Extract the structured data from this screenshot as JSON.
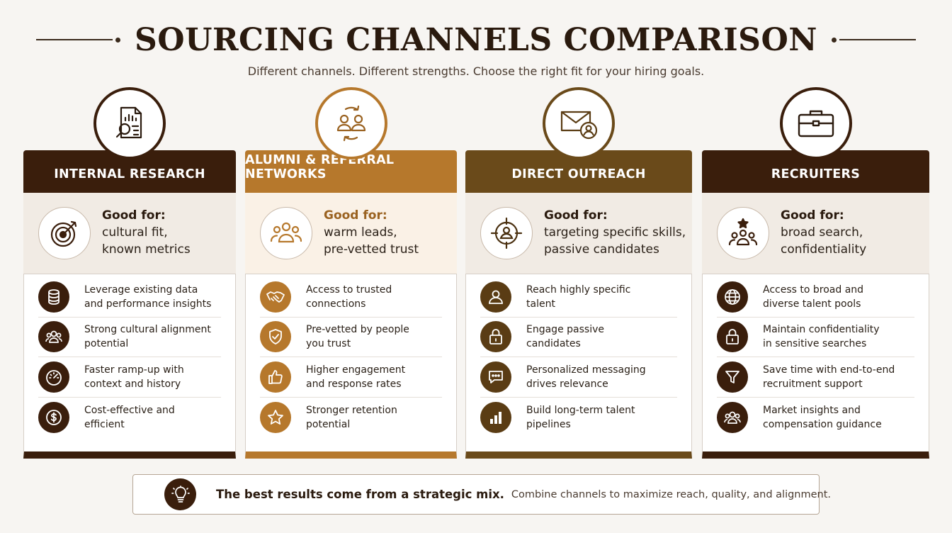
{
  "header": {
    "title": "SOURCING CHANNELS COMPARISON",
    "subtitle": "Different channels. Different strengths. Choose the right fit for your hiring goals."
  },
  "colors": {
    "dark_brown": "#3a1e0c",
    "gold": "#b6782c",
    "olive_brown": "#6a4a1a"
  },
  "columns": [
    {
      "title": "INTERNAL RESEARCH",
      "top_icon": "report-search-icon",
      "good_for_label": "Good for:",
      "good_for_line1": "cultural fit,",
      "good_for_line2": "known metrics",
      "good_for_icon": "target-icon",
      "items": [
        {
          "icon": "database-icon",
          "line1": "Leverage existing data",
          "line2": "and performance insights"
        },
        {
          "icon": "people-icon",
          "line1": "Strong cultural alignment",
          "line2": "potential"
        },
        {
          "icon": "speedometer-icon",
          "line1": "Faster ramp-up with",
          "line2": "context and history"
        },
        {
          "icon": "dollar-icon",
          "line1": "Cost-effective and",
          "line2": "efficient"
        }
      ]
    },
    {
      "title": "ALUMNI & REFERRAL NETWORKS",
      "top_icon": "referral-cycle-icon",
      "good_for_label": "Good for:",
      "good_for_line1": "warm leads,",
      "good_for_line2": "pre-vetted trust",
      "good_for_icon": "group-icon",
      "items": [
        {
          "icon": "handshake-icon",
          "line1": "Access to trusted",
          "line2": "connections"
        },
        {
          "icon": "shield-check-icon",
          "line1": "Pre-vetted by people",
          "line2": "you trust"
        },
        {
          "icon": "thumbs-up-icon",
          "line1": "Higher engagement",
          "line2": "and response rates"
        },
        {
          "icon": "star-icon",
          "line1": "Stronger retention",
          "line2": "potential"
        }
      ]
    },
    {
      "title": "DIRECT OUTREACH",
      "top_icon": "envelope-person-icon",
      "good_for_label": "Good for:",
      "good_for_line1": "targeting specific skills,",
      "good_for_line2": "passive candidates",
      "good_for_icon": "crosshair-person-icon",
      "items": [
        {
          "icon": "person-icon",
          "line1": "Reach highly specific",
          "line2": "talent"
        },
        {
          "icon": "lock-icon",
          "line1": "Engage passive",
          "line2": "candidates"
        },
        {
          "icon": "chat-bubble-icon",
          "line1": "Personalized messaging",
          "line2": "drives relevance"
        },
        {
          "icon": "bar-chart-icon",
          "line1": "Build long-term talent",
          "line2": "pipelines"
        }
      ]
    },
    {
      "title": "RECRUITERS",
      "top_icon": "briefcase-icon",
      "good_for_label": "Good for:",
      "good_for_line1": "broad search,",
      "good_for_line2": "confidentiality",
      "good_for_icon": "star-group-icon",
      "items": [
        {
          "icon": "globe-icon",
          "line1": "Access to broad and",
          "line2": "diverse talent pools"
        },
        {
          "icon": "lock-icon",
          "line1": "Maintain confidentiality",
          "line2": "in sensitive searches"
        },
        {
          "icon": "funnel-icon",
          "line1": "Save time with end-to-end",
          "line2": "recruitment support"
        },
        {
          "icon": "people-icon",
          "line1": "Market insights and",
          "line2": "compensation guidance"
        }
      ]
    }
  ],
  "footer": {
    "icon": "lightbulb-icon",
    "bold": "The best results come from a strategic mix.",
    "text": "Combine channels to maximize reach, quality, and alignment."
  }
}
